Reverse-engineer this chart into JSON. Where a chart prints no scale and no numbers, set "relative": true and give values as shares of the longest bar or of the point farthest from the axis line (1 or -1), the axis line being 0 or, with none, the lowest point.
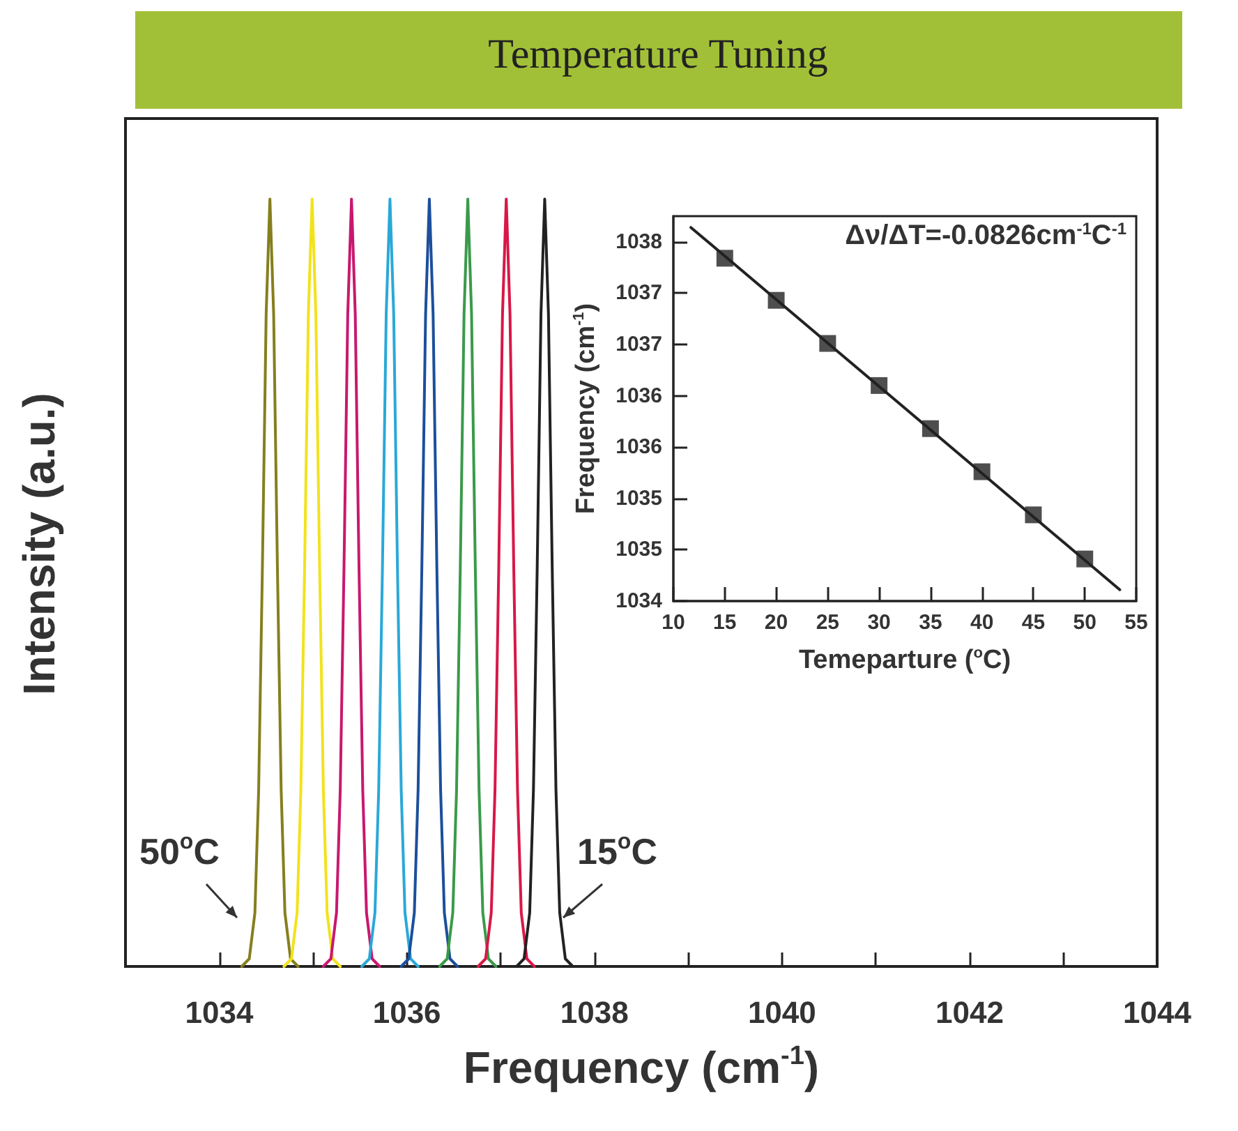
{
  "chart_data": [
    {
      "type": "line",
      "title": "Temperature Tuning",
      "xlabel": "Frequency (cm$^{-1}$)",
      "ylabel": "Intensity (a.u.)",
      "relative": true,
      "marker": "none",
      "grid": false,
      "tick_labels": "x",
      "xlim": [
        1033,
        1044
      ],
      "xticks": [
        {
          "value": 1033,
          "label": null
        },
        1034,
        {
          "value": 1035,
          "label": null
        },
        1036,
        {
          "value": 1037,
          "label": null
        },
        1038,
        {
          "value": 1039,
          "label": null
        },
        1040,
        {
          "value": 1041,
          "label": null
        },
        1042,
        {
          "value": 1043,
          "label": null
        },
        1044
      ],
      "annotations": [
        "50$^{o}$C",
        "15$^{o}$C"
      ],
      "series": [
        {
          "color": "#857f1e",
          "x": [
            1034.24,
            1034.32,
            1034.38,
            1034.42,
            1034.46,
            1034.5,
            1034.54,
            1034.58,
            1034.62,
            1034.66,
            1034.7,
            1034.76,
            1034.84
          ],
          "values": [
            0,
            0.01,
            0.07,
            0.23,
            0.52,
            0.85,
            1,
            0.85,
            0.52,
            0.23,
            0.07,
            0.01,
            0
          ]
        },
        {
          "color": "#f2e21c",
          "x": [
            1034.69,
            1034.77,
            1034.83,
            1034.87,
            1034.91,
            1034.95,
            1034.99,
            1035.03,
            1035.07,
            1035.11,
            1035.15,
            1035.21,
            1035.29
          ],
          "values": [
            0,
            0.01,
            0.07,
            0.23,
            0.52,
            0.85,
            1,
            0.85,
            0.52,
            0.23,
            0.07,
            0.01,
            0
          ]
        },
        {
          "color": "#c8186e",
          "x": [
            1035.11,
            1035.19,
            1035.25,
            1035.29,
            1035.33,
            1035.37,
            1035.41,
            1035.45,
            1035.49,
            1035.53,
            1035.57,
            1035.63,
            1035.71
          ],
          "values": [
            0,
            0.01,
            0.07,
            0.23,
            0.52,
            0.85,
            1,
            0.85,
            0.52,
            0.23,
            0.07,
            0.01,
            0
          ]
        },
        {
          "color": "#2aa8d8",
          "x": [
            1035.52,
            1035.6,
            1035.66,
            1035.7,
            1035.74,
            1035.78,
            1035.82,
            1035.86,
            1035.9,
            1035.94,
            1035.98,
            1036.04,
            1036.12
          ],
          "values": [
            0,
            0.01,
            0.07,
            0.23,
            0.52,
            0.85,
            1,
            0.85,
            0.52,
            0.23,
            0.07,
            0.01,
            0
          ]
        },
        {
          "color": "#1c4f9c",
          "x": [
            1035.94,
            1036.02,
            1036.08,
            1036.12,
            1036.16,
            1036.2,
            1036.24,
            1036.28,
            1036.32,
            1036.36,
            1036.4,
            1036.46,
            1036.54
          ],
          "values": [
            0,
            0.01,
            0.07,
            0.23,
            0.52,
            0.85,
            1,
            0.85,
            0.52,
            0.23,
            0.07,
            0.01,
            0
          ]
        },
        {
          "color": "#3a9a4a",
          "x": [
            1036.35,
            1036.43,
            1036.49,
            1036.53,
            1036.57,
            1036.61,
            1036.65,
            1036.69,
            1036.73,
            1036.77,
            1036.81,
            1036.87,
            1036.95
          ],
          "values": [
            0,
            0.01,
            0.07,
            0.23,
            0.52,
            0.85,
            1,
            0.85,
            0.52,
            0.23,
            0.07,
            0.01,
            0
          ]
        },
        {
          "color": "#d81848",
          "x": [
            1036.76,
            1036.84,
            1036.9,
            1036.94,
            1036.98,
            1037.02,
            1037.06,
            1037.1,
            1037.14,
            1037.18,
            1037.22,
            1037.28,
            1037.36
          ],
          "values": [
            0,
            0.01,
            0.07,
            0.23,
            0.52,
            0.85,
            1,
            0.85,
            0.52,
            0.23,
            0.07,
            0.01,
            0
          ]
        },
        {
          "color": "#222222",
          "x": [
            1037.17,
            1037.25,
            1037.31,
            1037.35,
            1037.39,
            1037.43,
            1037.47,
            1037.51,
            1037.55,
            1037.59,
            1037.63,
            1037.69,
            1037.77
          ],
          "values": [
            0,
            0.01,
            0.07,
            0.23,
            0.52,
            0.85,
            1,
            0.85,
            0.52,
            0.23,
            0.07,
            0.01,
            0
          ]
        }
      ]
    },
    {
      "type": "scatter",
      "xlabel": "Temeparture ($^{o}$C)",
      "ylabel": "Frequency (cm$^{-1}$)",
      "grid": false,
      "marker": "square",
      "xlim": [
        10,
        55
      ],
      "xticks": [
        10,
        15,
        20,
        25,
        30,
        35,
        40,
        45,
        50,
        55
      ],
      "ylim": [
        1034.5,
        1038.25
      ],
      "yticks": [
        {
          "value": 1034.5,
          "label": "1034"
        },
        {
          "value": 1035,
          "label": "1035"
        },
        {
          "value": 1035.5,
          "label": "1035"
        },
        {
          "value": 1036,
          "label": "1036"
        },
        {
          "value": 1036.5,
          "label": "1036"
        },
        {
          "value": 1037,
          "label": "1037"
        },
        {
          "value": 1037.5,
          "label": "1037"
        },
        {
          "value": 1038,
          "label": "1038"
        }
      ],
      "annotations": [
        "Δν/ΔT=-0.0826cm$^{-1}$C$^{-1}$"
      ],
      "series": [
        {
          "color": "#222222",
          "x": [
            15,
            20,
            25,
            30,
            35,
            40,
            45,
            50
          ],
          "values": [
            1037.84,
            1037.43,
            1037.01,
            1036.6,
            1036.18,
            1035.76,
            1035.34,
            1034.91
          ]
        },
        {
          "type": "line",
          "marker": "none",
          "color": "#222222",
          "x": [
            11.7,
            53.4
          ],
          "values": [
            1038.14,
            1034.61
          ]
        }
      ]
    }
  ]
}
